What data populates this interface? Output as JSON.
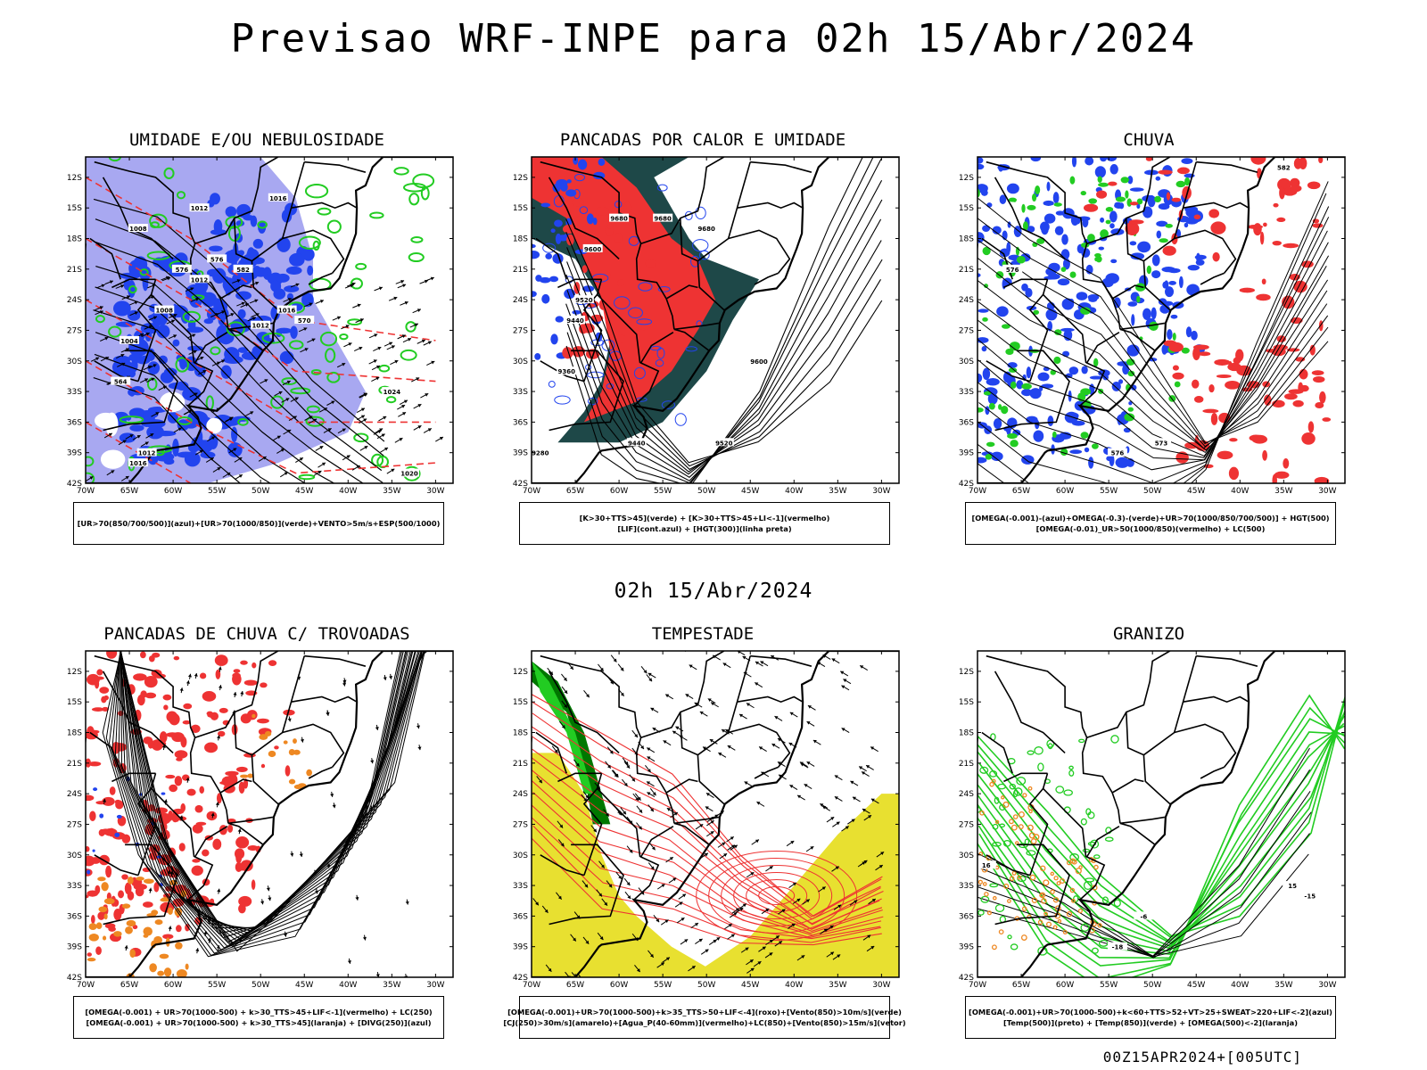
{
  "title": "Previsao WRF-INPE  para 02h 15/Abr/2024",
  "middle_title": "02h 15/Abr/2024",
  "footer": "00Z15APR2024+[005UTC]",
  "axes": {
    "lat_labels": [
      "12S",
      "15S",
      "18S",
      "21S",
      "24S",
      "27S",
      "30S",
      "33S",
      "36S",
      "39S",
      "42S"
    ],
    "lon_labels": [
      "70W",
      "65W",
      "60W",
      "55W",
      "50W",
      "45W",
      "40W",
      "35W",
      "30W"
    ]
  },
  "colors": {
    "blue": "#2244ee",
    "light_blue": "#9999ee",
    "green": "#22cc22",
    "dark_green": "#007700",
    "red": "#ee3333",
    "orange": "#ee8822",
    "yellow": "#e8e030",
    "dark_teal": "#1e4848"
  },
  "panels": [
    {
      "id": "umidade",
      "title": "UMIDADE E/OU NEBULOSIDADE",
      "legend": [
        "[UR>70(850/700/500)](azul)+[UR>70(1000/850)](verde)+VENTO>5m/s+ESP(500/1000)"
      ],
      "contour_labels": [
        "1012",
        "1008",
        "1016",
        "1012",
        "1016",
        "1012",
        "1008",
        "1004",
        "1024",
        "1012",
        "1016",
        "1020",
        "576",
        "576",
        "570",
        "564",
        "582"
      ]
    },
    {
      "id": "pancadas_calor",
      "title": "PANCADAS POR CALOR E UMIDADE",
      "legend": [
        "[K>30+TTS>45](verde) + [K>30+TTS>45+LI<-1](vermelho)",
        "[LIF](cont.azul) + [HGT(300)](linha preta)"
      ],
      "contour_labels": [
        "9680",
        "9680",
        "9680",
        "9600",
        "9520",
        "9440",
        "9360",
        "9600",
        "9520",
        "9440",
        "9280"
      ]
    },
    {
      "id": "chuva",
      "title": "CHUVA",
      "legend": [
        "[OMEGA(-0.001)-(azul)+OMEGA(-0.3)-(verde)+UR>70(1000/850/700/500)] + HGT(500)",
        "[OMEGA(-0.01)_UR>50(1000/850)(vermelho) + LC(500)"
      ],
      "contour_labels": [
        "576",
        "576",
        "573",
        "582"
      ]
    },
    {
      "id": "pancadas_trovoadas",
      "title": "PANCADAS DE CHUVA C/ TROVOADAS",
      "legend": [
        "[OMEGA(-0.001) + UR>70(1000-500) + k>30_TTS>45+LIF<-1](vermelho) + LC(250)",
        "[OMEGA(-0.001) + UR>70(1000-500) + k>30_TTS>45](laranja) + [DIVG(250)](azul)"
      ],
      "contour_labels": []
    },
    {
      "id": "tempestade",
      "title": "TEMPESTADE",
      "legend": [
        "[OMEGA(-0.001)+UR>70(1000-500)+k>35_TTS>50+LIF<-4](roxo)+[Vento(850)>10m/s](verde)",
        "[CJ(250)>30m/s](amarelo)+[Agua_P(40-60mm)](vermelho)+LC(850)+[Vento(850)>15m/s](vetor)"
      ],
      "contour_labels": []
    },
    {
      "id": "granizo",
      "title": "GRANIZO",
      "legend": [
        "[OMEGA(-0.001)+UR>70(1000-500)+k<60+TTS>52+VT>25+SWEAT>220+LIF<-2](azul)",
        "[Temp(500)](preto) + [Temp(850)](verde) + [OMEGA(500)<-2](laranja)"
      ],
      "contour_labels": [
        "16",
        "-6",
        "-15",
        "15",
        "-18"
      ]
    }
  ]
}
